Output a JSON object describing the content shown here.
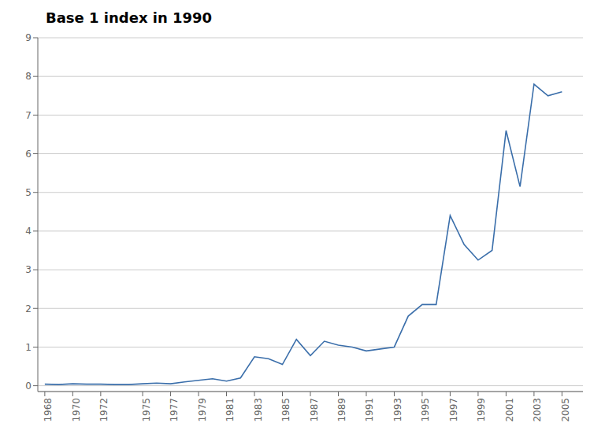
{
  "chart_data": {
    "type": "line",
    "title": "Base 1 index in 1990",
    "x": [
      1968,
      1969,
      1970,
      1971,
      1972,
      1973,
      1974,
      1975,
      1976,
      1977,
      1978,
      1979,
      1980,
      1981,
      1982,
      1983,
      1984,
      1985,
      1986,
      1987,
      1988,
      1989,
      1990,
      1991,
      1992,
      1993,
      1994,
      1995,
      1996,
      1997,
      1998,
      1999,
      2000,
      2001,
      2002,
      2003,
      2004,
      2005
    ],
    "values": [
      0.04,
      0.03,
      0.05,
      0.04,
      0.04,
      0.03,
      0.03,
      0.05,
      0.07,
      0.05,
      0.1,
      0.14,
      0.18,
      0.12,
      0.2,
      0.75,
      0.7,
      0.55,
      1.2,
      0.78,
      1.15,
      1.05,
      1.0,
      0.9,
      0.95,
      1.0,
      1.8,
      2.1,
      2.1,
      4.4,
      3.65,
      3.25,
      3.5,
      6.6,
      5.15,
      7.8,
      7.5,
      7.6
    ],
    "color": "#3A6EAA",
    "xlim": [
      1967.5,
      2006.5
    ],
    "ylim": [
      -0.15,
      9.0
    ],
    "xticks": [
      1968,
      1970,
      1972,
      1975,
      1977,
      1979,
      1981,
      1983,
      1985,
      1987,
      1989,
      1991,
      1993,
      1995,
      1997,
      1999,
      2001,
      2003,
      2005
    ],
    "yticks": [
      0,
      1,
      2,
      3,
      4,
      5,
      6,
      7,
      8,
      9
    ],
    "grid": true
  }
}
